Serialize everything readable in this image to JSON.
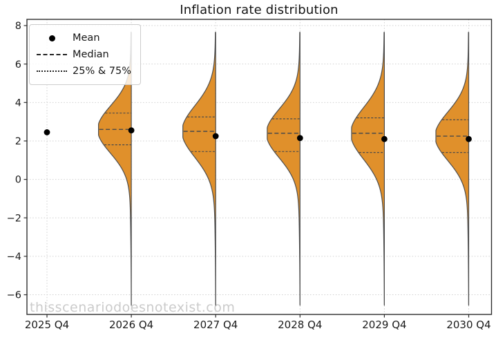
{
  "chart_data": {
    "type": "violin",
    "title": "Inflation rate distribution",
    "xlabel": "",
    "ylabel": "",
    "watermark": "thisscenariodoesnotexist.com",
    "categories": [
      "2025 Q4",
      "2026 Q4",
      "2027 Q4",
      "2028 Q4",
      "2029 Q4",
      "2030 Q4"
    ],
    "yticks": [
      8,
      6,
      4,
      2,
      0,
      -2,
      -4,
      -6
    ],
    "ylim": [
      -7.0,
      8.33
    ],
    "grid": true,
    "violin_side": "left",
    "legend_position": "upper-left",
    "legend": [
      {
        "label": "Mean",
        "marker": "dot"
      },
      {
        "label": "Median",
        "marker": "dashed-line"
      },
      {
        "label": "25% & 75%",
        "marker": "dotted-line"
      }
    ],
    "series": [
      {
        "category": "2025 Q4",
        "mean": 2.45,
        "median": null,
        "p25": null,
        "p75": null,
        "min": null,
        "max": null
      },
      {
        "category": "2026 Q4",
        "mean": 2.55,
        "median": 2.6,
        "p25": 1.8,
        "p75": 3.45,
        "min": -6.55,
        "max": 7.65
      },
      {
        "category": "2027 Q4",
        "mean": 2.25,
        "median": 2.5,
        "p25": 1.45,
        "p75": 3.25,
        "min": -6.55,
        "max": 7.65
      },
      {
        "category": "2028 Q4",
        "mean": 2.15,
        "median": 2.4,
        "p25": 1.45,
        "p75": 3.15,
        "min": -6.55,
        "max": 7.65
      },
      {
        "category": "2029 Q4",
        "mean": 2.1,
        "median": 2.4,
        "p25": 1.4,
        "p75": 3.2,
        "min": -6.55,
        "max": 7.65
      },
      {
        "category": "2030 Q4",
        "mean": 2.1,
        "median": 2.25,
        "p25": 1.4,
        "p75": 3.1,
        "min": -6.55,
        "max": 7.65
      }
    ],
    "colors": {
      "violin_fill": "#E0902B",
      "violin_edge": "#4d4d4d",
      "inner_line": "#39424e",
      "mean_dot": "#000000",
      "grid": "#cfcfcf",
      "spine": "#2e2e2e",
      "tick_label": "#1a1a1a",
      "watermark": "#cbcbcb"
    }
  }
}
